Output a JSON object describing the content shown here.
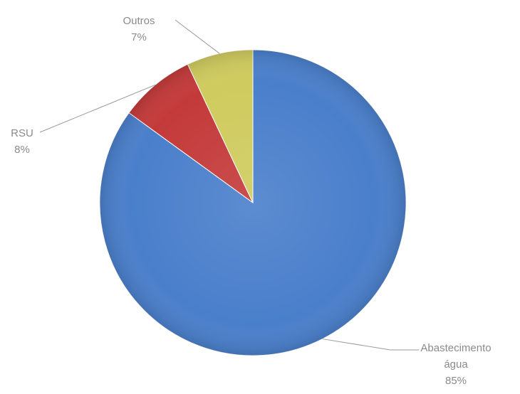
{
  "chart_data": {
    "type": "pie",
    "title": "",
    "start_angle_deg": 0,
    "direction": "clockwise",
    "slices": [
      {
        "label": "Abastecimento água",
        "label_lines": [
          "Abastecimento",
          "água"
        ],
        "value": 85,
        "value_label": "85%",
        "color": "#4A7FCB"
      },
      {
        "label": "RSU",
        "label_lines": [
          "RSU"
        ],
        "value": 8,
        "value_label": "8%",
        "color": "#C43A3A"
      },
      {
        "label": "Outros",
        "label_lines": [
          "Outros"
        ],
        "value": 7,
        "value_label": "7%",
        "color": "#CFCB5E"
      }
    ],
    "legend": "none",
    "data_labels": "outside with leader lines"
  }
}
